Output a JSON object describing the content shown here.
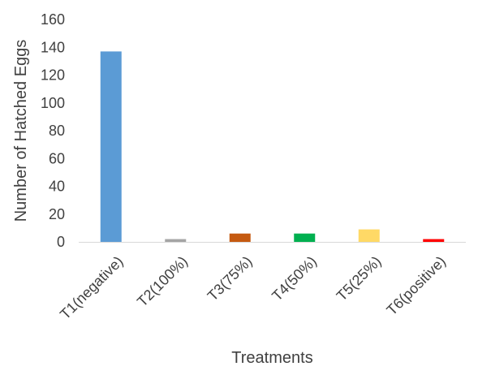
{
  "chart_data": {
    "type": "bar",
    "title": "",
    "xlabel": "Treatments",
    "ylabel": "Number of Hatched Eggs",
    "categories": [
      "T1(negative)",
      "T2(100%)",
      "T3(75%)",
      "T4(50%)",
      "T5(25%)",
      "T6(positive)"
    ],
    "values": [
      137,
      2,
      6,
      6,
      9,
      2
    ],
    "colors": [
      "#5B9BD5",
      "#A5A5A5",
      "#C55A11",
      "#00B050",
      "#FFD966",
      "#FF0000"
    ],
    "ylim": [
      0,
      160
    ],
    "yticks": [
      0,
      20,
      40,
      60,
      80,
      100,
      120,
      140,
      160
    ],
    "grid": false,
    "legend": "none"
  }
}
